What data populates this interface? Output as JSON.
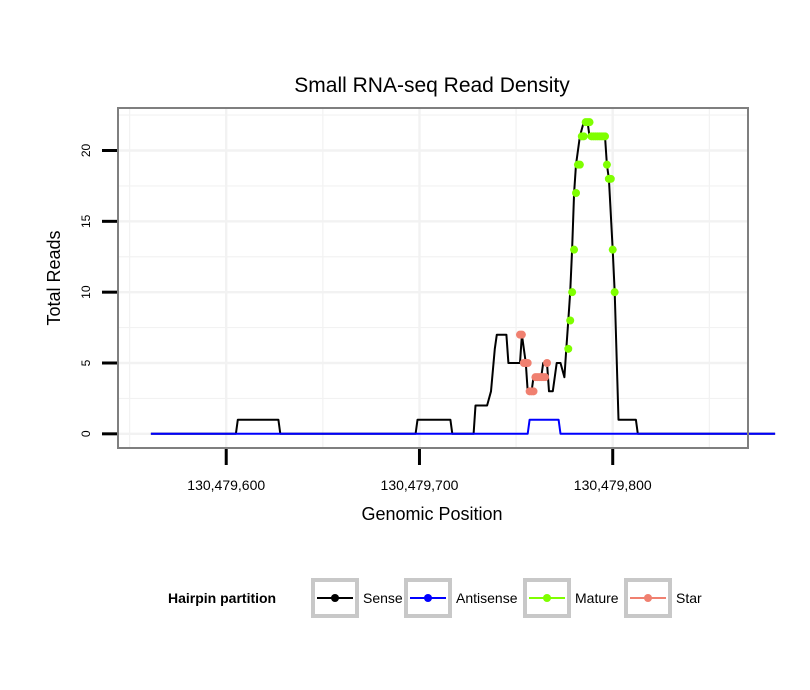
{
  "chart_data": {
    "type": "line",
    "title": "Small RNA-seq Read Density",
    "xlabel": "Genomic Position",
    "ylabel": "Total Reads",
    "xlim": [
      130479544,
      130479870
    ],
    "ylim": [
      -1,
      23
    ],
    "x_ticks": [
      {
        "value": 130479600,
        "label": "130,479,600"
      },
      {
        "value": 130479700,
        "label": "130,479,700"
      },
      {
        "value": 130479800,
        "label": "130,479,800"
      }
    ],
    "y_ticks": [
      {
        "value": 0,
        "label": "0"
      },
      {
        "value": 5,
        "label": "5"
      },
      {
        "value": 10,
        "label": "10"
      },
      {
        "value": 15,
        "label": "15"
      },
      {
        "value": 20,
        "label": "20"
      }
    ],
    "grid": true,
    "legend": {
      "title": "Hairpin partition",
      "position": "bottom",
      "entries": [
        "Sense",
        "Antisense",
        "Mature",
        "Star"
      ]
    },
    "colors": {
      "sense": "#000000",
      "antisense": "#0000ff",
      "mature": "#7fff00",
      "star": "#f08070",
      "panel_border": "#7f7f7f",
      "grid": "#f2f2f2"
    },
    "series": [
      {
        "name": "Sense",
        "color": "#000000",
        "x": [
          130479561,
          130479605,
          130479606,
          130479627,
          130479628,
          130479698,
          130479699,
          130479716,
          130479717,
          130479728,
          130479729,
          130479735,
          130479737,
          130479739,
          130479740,
          130479745,
          130479746,
          130479752,
          130479753,
          130479755,
          130479756,
          130479758,
          130479759,
          130479763,
          130479764,
          130479766,
          130479767,
          130479769,
          130479771,
          130479773,
          130479775,
          130479776,
          130479777,
          130479778,
          130479779,
          130479780,
          130479781,
          130479783,
          130479785,
          130479787,
          130479788,
          130479790,
          130479792,
          130479796,
          130479797,
          130479798,
          130479800,
          130479801,
          130479803,
          130479805,
          130479806,
          130479812,
          130479813,
          130479884
        ],
        "y": [
          0,
          0,
          1,
          1,
          0,
          0,
          1,
          1,
          0,
          0,
          2,
          2,
          3,
          6,
          7,
          7,
          5,
          5,
          7,
          5,
          3,
          3,
          4,
          4,
          5,
          5,
          3,
          3,
          5,
          5,
          4,
          6,
          8,
          10,
          13,
          17,
          19,
          21,
          22,
          22,
          21,
          21,
          21,
          21,
          19,
          18,
          13,
          10,
          1,
          1,
          1,
          1,
          0,
          0
        ]
      },
      {
        "name": "Antisense",
        "color": "#0000ff",
        "x": [
          130479561,
          130479756,
          130479757,
          130479772,
          130479773,
          130479884
        ],
        "y": [
          0,
          0,
          1,
          1,
          0,
          0
        ]
      },
      {
        "name": "Mature",
        "color": "#7fff00",
        "x": [
          130479777,
          130479778,
          130479779,
          130479780,
          130479781,
          130479782,
          130479783,
          130479784,
          130479785,
          130479786,
          130479787,
          130479788,
          130479789,
          130479790,
          130479791,
          130479792,
          130479793,
          130479794,
          130479795,
          130479796,
          130479797,
          130479798,
          130479799,
          130479800,
          130479801
        ],
        "y": [
          6,
          8,
          10,
          13,
          17,
          19,
          19,
          21,
          21,
          22,
          22,
          22,
          21,
          21,
          21,
          21,
          21,
          21,
          21,
          21,
          19,
          18,
          18,
          13,
          10
        ]
      },
      {
        "name": "Star",
        "color": "#f08070",
        "x": [
          130479752,
          130479753,
          130479754,
          130479755,
          130479756,
          130479757,
          130479758,
          130479759,
          130479760,
          130479761,
          130479762,
          130479763,
          130479764,
          130479765,
          130479766
        ],
        "y": [
          7,
          7,
          5,
          5,
          5,
          3,
          3,
          3,
          4,
          4,
          4,
          4,
          4,
          4,
          5
        ]
      }
    ]
  }
}
